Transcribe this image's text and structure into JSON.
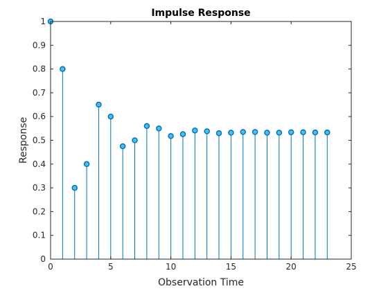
{
  "chart_data": {
    "type": "stem",
    "title": "Impulse Response",
    "xlabel": "Observation Time",
    "ylabel": "Response",
    "xlim": [
      0,
      25
    ],
    "ylim": [
      0,
      1
    ],
    "xticks": [
      "0",
      "5",
      "10",
      "15",
      "20",
      "25"
    ],
    "yticks": [
      "0",
      "0.1",
      "0.2",
      "0.3",
      "0.4",
      "0.5",
      "0.6",
      "0.7",
      "0.8",
      "0.9",
      "1"
    ],
    "grid": false,
    "box": true,
    "color": "#0072BD",
    "marker_fill": "#4DBEEE",
    "x": [
      0,
      1,
      2,
      3,
      4,
      5,
      6,
      7,
      8,
      9,
      10,
      11,
      12,
      13,
      14,
      15,
      16,
      17,
      18,
      19,
      20,
      21,
      22,
      23
    ],
    "y": [
      1.0,
      0.8,
      0.3,
      0.4,
      0.65,
      0.6,
      0.475,
      0.5,
      0.56,
      0.55,
      0.518,
      0.526,
      0.541,
      0.538,
      0.53,
      0.532,
      0.535,
      0.535,
      0.532,
      0.532,
      0.534,
      0.534,
      0.533,
      0.533
    ]
  }
}
